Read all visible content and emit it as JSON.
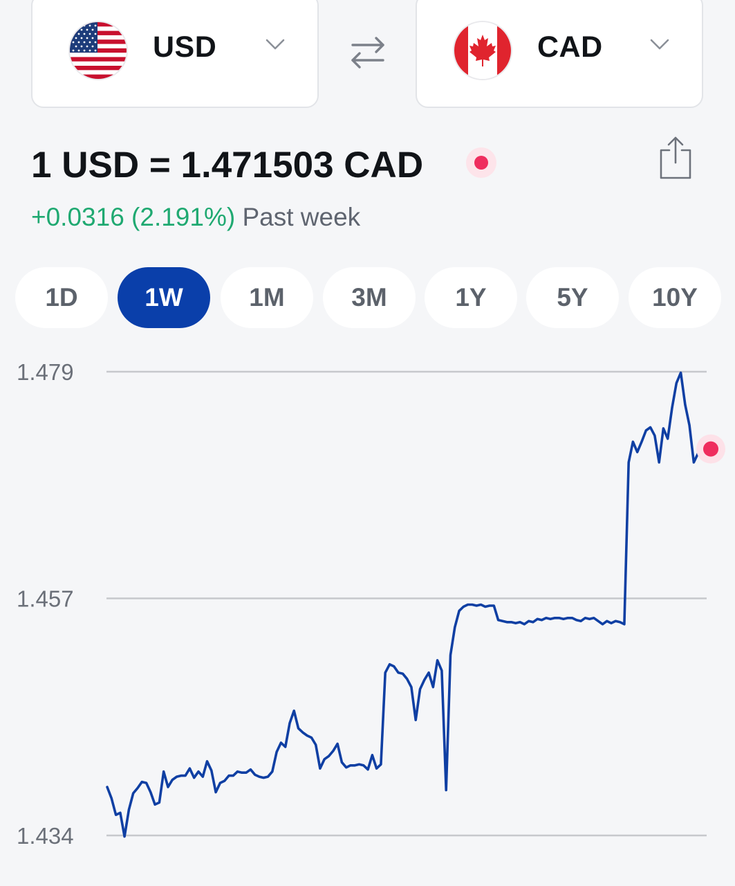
{
  "converter": {
    "from": {
      "code": "USD",
      "flag": "us-flag-icon"
    },
    "to": {
      "code": "CAD",
      "flag": "canada-flag-icon"
    },
    "swap_icon": "swap-arrows-icon",
    "chevron_icon": "chevron-down-icon"
  },
  "rate": {
    "text": "1 USD = 1.471503 CAD",
    "change": "+0.0316 (2.191%)",
    "period": "Past week"
  },
  "share_icon": "share-icon",
  "tabs": [
    {
      "label": "1D",
      "active": false
    },
    {
      "label": "1W",
      "active": true
    },
    {
      "label": "1M",
      "active": false
    },
    {
      "label": "3M",
      "active": false
    },
    {
      "label": "1Y",
      "active": false
    },
    {
      "label": "5Y",
      "active": false
    },
    {
      "label": "10Y",
      "active": false
    }
  ],
  "colors": {
    "accent": "#0a3faa",
    "line": "#0f3fa3",
    "positive": "#1fa971",
    "live": "#ef2d5e"
  },
  "chart_data": {
    "type": "line",
    "title": "",
    "xlabel": "",
    "ylabel": "",
    "ylim": [
      1.434,
      1.479
    ],
    "yticks": [
      "1.479",
      "1.457",
      "1.434"
    ],
    "grid": true,
    "series": [
      {
        "values": [
          1.4387,
          1.4376,
          1.436,
          1.4362,
          1.4339,
          1.4365,
          1.4381,
          1.4386,
          1.4392,
          1.4391,
          1.4382,
          1.437,
          1.4372,
          1.4402,
          1.4387,
          1.4394,
          1.4397,
          1.4398,
          1.4398,
          1.4405,
          1.4396,
          1.4402,
          1.4397,
          1.4412,
          1.4403,
          1.4382,
          1.4391,
          1.4393,
          1.4398,
          1.4398,
          1.4402,
          1.4401,
          1.4401,
          1.4404,
          1.4399,
          1.4397,
          1.4396,
          1.4397,
          1.4402,
          1.4421,
          1.443,
          1.4426,
          1.4449,
          1.4461,
          1.4444,
          1.444,
          1.4437,
          1.4435,
          1.4428,
          1.4405,
          1.4414,
          1.4417,
          1.4422,
          1.4429,
          1.4411,
          1.4406,
          1.4408,
          1.4408,
          1.4409,
          1.4408,
          1.4404,
          1.4418,
          1.4405,
          1.4409,
          1.4498,
          1.4506,
          1.4504,
          1.4498,
          1.4497,
          1.4492,
          1.4484,
          1.4452,
          1.4482,
          1.4491,
          1.4498,
          1.4484,
          1.451,
          1.45,
          1.4384,
          1.4515,
          1.4542,
          1.4558,
          1.4562,
          1.4564,
          1.4564,
          1.4563,
          1.4564,
          1.4562,
          1.4563,
          1.4563,
          1.4549,
          1.4548,
          1.4547,
          1.4547,
          1.4546,
          1.4547,
          1.4545,
          1.4548,
          1.4547,
          1.455,
          1.4549,
          1.4551,
          1.455,
          1.4551,
          1.4551,
          1.455,
          1.4551,
          1.4551,
          1.4549,
          1.4548,
          1.4551,
          1.455,
          1.4551,
          1.4548,
          1.4545,
          1.4548,
          1.4546,
          1.4548,
          1.4547,
          1.4545,
          1.4702,
          1.4722,
          1.4712,
          1.4722,
          1.4733,
          1.4736,
          1.4728,
          1.4702,
          1.4735,
          1.4725,
          1.4755,
          1.4779,
          1.4789,
          1.4758,
          1.4738,
          1.4702,
          1.4711,
          1.4715
        ]
      }
    ],
    "current_value": 1.471503
  }
}
